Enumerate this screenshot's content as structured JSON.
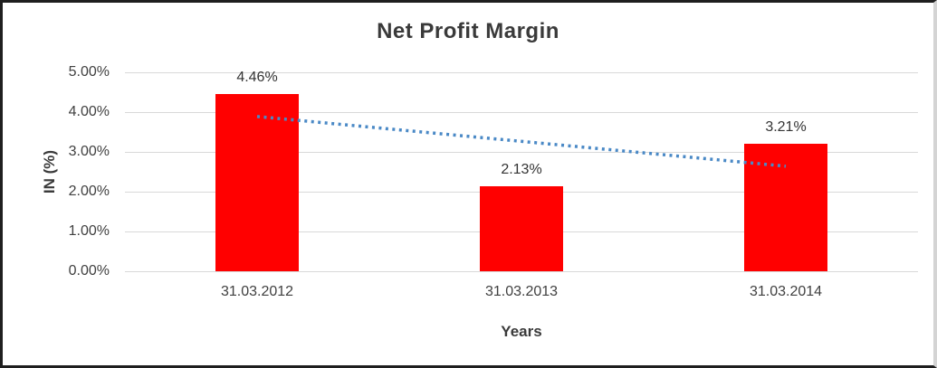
{
  "chart_data": {
    "type": "bar",
    "title": "Net Profit Margin",
    "xlabel": "Years",
    "ylabel": "IN (%)",
    "categories": [
      "31.03.2012",
      "31.03.2013",
      "31.03.2014"
    ],
    "values": [
      4.46,
      2.13,
      3.21
    ],
    "data_labels": [
      "4.46%",
      "2.13%",
      "3.21%"
    ],
    "y_ticks": [
      "0.00%",
      "1.00%",
      "2.00%",
      "3.00%",
      "4.00%",
      "5.00%"
    ],
    "y_tick_values": [
      0,
      1,
      2,
      3,
      4,
      5
    ],
    "ylim": [
      0,
      5
    ],
    "grid": "horizontal",
    "legend": "none",
    "bar_color": "#ff0000",
    "gridline_color": "#d9d9d9",
    "text_color": "#404040",
    "trendline": {
      "type": "linear",
      "style": "dotted",
      "color": "#4a89c6",
      "start_value": 3.89,
      "end_value": 2.64
    }
  }
}
